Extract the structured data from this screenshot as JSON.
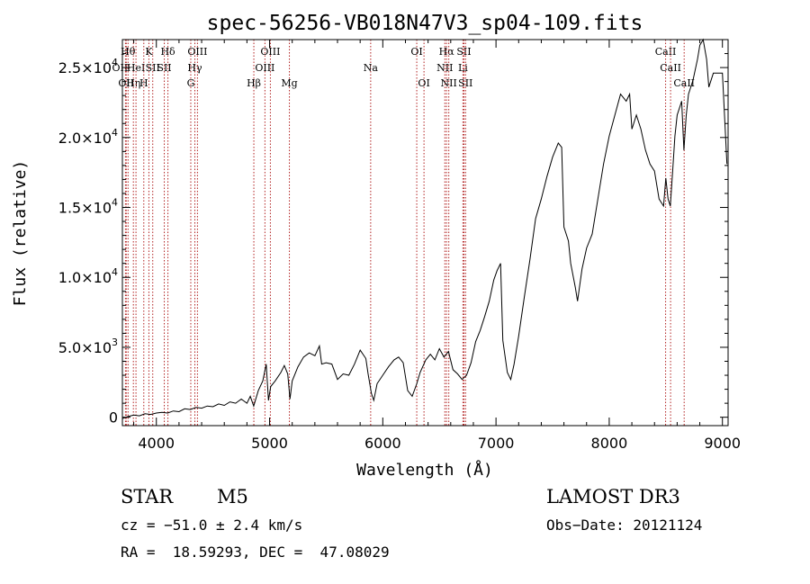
{
  "chart_data": {
    "type": "line",
    "title": "spec-56256-VB018N47V3_sp04-109.fits",
    "xlabel": "Wavelength (Å)",
    "ylabel": "Flux (relative)",
    "xlim": [
      3700,
      9050
    ],
    "ylim": [
      -600,
      27000
    ],
    "x_ticks": [
      {
        "value": 4000,
        "label": "4000"
      },
      {
        "value": 5000,
        "label": "5000"
      },
      {
        "value": 6000,
        "label": "6000"
      },
      {
        "value": 7000,
        "label": "7000"
      },
      {
        "value": 8000,
        "label": "8000"
      },
      {
        "value": 9000,
        "label": "9000"
      }
    ],
    "y_ticks": [
      {
        "value": 0,
        "mant": "0",
        "exp": ""
      },
      {
        "value": 5000,
        "mant": "5.0×10",
        "exp": "3"
      },
      {
        "value": 10000,
        "mant": "1.0×10",
        "exp": "4"
      },
      {
        "value": 15000,
        "mant": "1.5×10",
        "exp": "4"
      },
      {
        "value": 20000,
        "mant": "2.0×10",
        "exp": "4"
      },
      {
        "value": 25000,
        "mant": "2.5×10",
        "exp": "4"
      }
    ],
    "line_color": "#000000",
    "marker_color": "#b22222",
    "spectrum": [
      [
        3700,
        -100
      ],
      [
        3750,
        50
      ],
      [
        3800,
        150
      ],
      [
        3850,
        100
      ],
      [
        3900,
        250
      ],
      [
        3950,
        200
      ],
      [
        4000,
        300
      ],
      [
        4050,
        350
      ],
      [
        4100,
        300
      ],
      [
        4150,
        450
      ],
      [
        4200,
        400
      ],
      [
        4250,
        600
      ],
      [
        4300,
        550
      ],
      [
        4350,
        700
      ],
      [
        4400,
        650
      ],
      [
        4450,
        800
      ],
      [
        4500,
        750
      ],
      [
        4550,
        950
      ],
      [
        4600,
        850
      ],
      [
        4650,
        1100
      ],
      [
        4700,
        1000
      ],
      [
        4750,
        1300
      ],
      [
        4800,
        1000
      ],
      [
        4830,
        1500
      ],
      [
        4860,
        800
      ],
      [
        4900,
        1900
      ],
      [
        4940,
        2600
      ],
      [
        4970,
        3800
      ],
      [
        4990,
        1200
      ],
      [
        5010,
        2200
      ],
      [
        5050,
        2600
      ],
      [
        5100,
        3200
      ],
      [
        5130,
        3700
      ],
      [
        5160,
        3100
      ],
      [
        5180,
        1300
      ],
      [
        5200,
        2600
      ],
      [
        5250,
        3600
      ],
      [
        5300,
        4300
      ],
      [
        5350,
        4600
      ],
      [
        5400,
        4400
      ],
      [
        5440,
        5100
      ],
      [
        5460,
        3800
      ],
      [
        5500,
        3900
      ],
      [
        5550,
        3800
      ],
      [
        5600,
        2700
      ],
      [
        5650,
        3100
      ],
      [
        5700,
        3000
      ],
      [
        5750,
        3800
      ],
      [
        5800,
        4800
      ],
      [
        5850,
        4200
      ],
      [
        5870,
        3100
      ],
      [
        5900,
        1700
      ],
      [
        5920,
        1200
      ],
      [
        5950,
        2400
      ],
      [
        6000,
        3000
      ],
      [
        6050,
        3600
      ],
      [
        6100,
        4100
      ],
      [
        6140,
        4300
      ],
      [
        6180,
        3900
      ],
      [
        6220,
        1900
      ],
      [
        6260,
        1500
      ],
      [
        6300,
        2400
      ],
      [
        6330,
        3200
      ],
      [
        6380,
        4100
      ],
      [
        6420,
        4500
      ],
      [
        6460,
        4100
      ],
      [
        6500,
        4900
      ],
      [
        6540,
        4300
      ],
      [
        6580,
        4700
      ],
      [
        6620,
        3400
      ],
      [
        6660,
        3100
      ],
      [
        6700,
        2700
      ],
      [
        6740,
        3000
      ],
      [
        6780,
        3900
      ],
      [
        6820,
        5400
      ],
      [
        6860,
        6200
      ],
      [
        6900,
        7200
      ],
      [
        6940,
        8300
      ],
      [
        6980,
        9800
      ],
      [
        7010,
        10500
      ],
      [
        7040,
        11000
      ],
      [
        7060,
        5500
      ],
      [
        7100,
        3200
      ],
      [
        7130,
        2700
      ],
      [
        7160,
        3800
      ],
      [
        7200,
        5800
      ],
      [
        7250,
        8600
      ],
      [
        7300,
        11300
      ],
      [
        7350,
        14200
      ],
      [
        7400,
        15600
      ],
      [
        7450,
        17200
      ],
      [
        7500,
        18600
      ],
      [
        7550,
        19600
      ],
      [
        7580,
        19300
      ],
      [
        7600,
        13600
      ],
      [
        7640,
        12600
      ],
      [
        7660,
        11000
      ],
      [
        7700,
        9300
      ],
      [
        7720,
        8300
      ],
      [
        7760,
        10600
      ],
      [
        7800,
        12100
      ],
      [
        7850,
        13100
      ],
      [
        7900,
        15600
      ],
      [
        7950,
        18100
      ],
      [
        8000,
        20100
      ],
      [
        8050,
        21600
      ],
      [
        8100,
        23100
      ],
      [
        8150,
        22600
      ],
      [
        8180,
        23100
      ],
      [
        8200,
        20600
      ],
      [
        8240,
        21600
      ],
      [
        8280,
        20600
      ],
      [
        8320,
        19100
      ],
      [
        8360,
        18100
      ],
      [
        8400,
        17600
      ],
      [
        8440,
        15600
      ],
      [
        8480,
        15100
      ],
      [
        8500,
        17100
      ],
      [
        8520,
        15600
      ],
      [
        8540,
        15100
      ],
      [
        8560,
        17600
      ],
      [
        8580,
        20100
      ],
      [
        8600,
        21600
      ],
      [
        8620,
        22100
      ],
      [
        8640,
        22600
      ],
      [
        8660,
        19100
      ],
      [
        8680,
        21600
      ],
      [
        8700,
        23100
      ],
      [
        8740,
        24100
      ],
      [
        8780,
        25600
      ],
      [
        8800,
        26600
      ],
      [
        8830,
        27000
      ],
      [
        8860,
        25600
      ],
      [
        8880,
        23600
      ],
      [
        8920,
        24600
      ],
      [
        8960,
        24600
      ],
      [
        9000,
        24600
      ],
      [
        9040,
        18100
      ]
    ],
    "lines": [
      {
        "wave": 3750,
        "row": 0,
        "label": "Hθ",
        "dx": 0
      },
      {
        "wave": 3727,
        "row": 1,
        "label": "OII",
        "dx": -6
      },
      {
        "wave": 3734,
        "row": 2,
        "label": "OII",
        "dx": 0
      },
      {
        "wave": 3797,
        "row": 2,
        "label": "Hη",
        "dx": 0
      },
      {
        "wave": 3820,
        "row": 1,
        "label": "HeI",
        "dx": 0
      },
      {
        "wave": 3889,
        "row": 2,
        "label": "H",
        "dx": 0
      },
      {
        "wave": 3934,
        "row": 0,
        "label": "K",
        "dx": 0
      },
      {
        "wave": 3968,
        "row": 1,
        "label": "SII",
        "dx": 0
      },
      {
        "wave": 4102,
        "row": 0,
        "label": "Hδ",
        "dx": 0
      },
      {
        "wave": 4070,
        "row": 1,
        "label": "SII",
        "dx": 0
      },
      {
        "wave": 4340,
        "row": 1,
        "label": "Hγ",
        "dx": 0
      },
      {
        "wave": 4363,
        "row": 0,
        "label": "OIII",
        "dx": 0
      },
      {
        "wave": 4304,
        "row": 2,
        "label": "G",
        "dx": 0
      },
      {
        "wave": 4861,
        "row": 2,
        "label": "Hβ",
        "dx": 0
      },
      {
        "wave": 4959,
        "row": 1,
        "label": "OIII",
        "dx": 0
      },
      {
        "wave": 5007,
        "row": 0,
        "label": "OIII",
        "dx": 0
      },
      {
        "wave": 5175,
        "row": 2,
        "label": "Mg",
        "dx": 0
      },
      {
        "wave": 5893,
        "row": 1,
        "label": "Na",
        "dx": 0
      },
      {
        "wave": 6300,
        "row": 0,
        "label": "OI",
        "dx": 0
      },
      {
        "wave": 6364,
        "row": 2,
        "label": "OI",
        "dx": 0
      },
      {
        "wave": 6548,
        "row": 1,
        "label": "NII",
        "dx": 0
      },
      {
        "wave": 6563,
        "row": 0,
        "label": "Hα",
        "dx": 0
      },
      {
        "wave": 6583,
        "row": 2,
        "label": "NII",
        "dx": 0
      },
      {
        "wave": 6708,
        "row": 1,
        "label": "Li",
        "dx": 0
      },
      {
        "wave": 6717,
        "row": 0,
        "label": "SII",
        "dx": 0
      },
      {
        "wave": 6731,
        "row": 2,
        "label": "SII",
        "dx": 0
      },
      {
        "wave": 8498,
        "row": 0,
        "label": "CaII",
        "dx": 0
      },
      {
        "wave": 8542,
        "row": 1,
        "label": "CaII",
        "dx": 0
      },
      {
        "wave": 8662,
        "row": 2,
        "label": "CaII",
        "dx": 0
      }
    ]
  },
  "info": {
    "object_class": "STAR",
    "subclass": "M5",
    "survey": "LAMOST DR3",
    "cz": "cz = −51.0 ± 2.4 km/s",
    "obs_date": "Obs−Date: 20121124",
    "coords": "RA =  18.59293, DEC =  47.08029"
  }
}
